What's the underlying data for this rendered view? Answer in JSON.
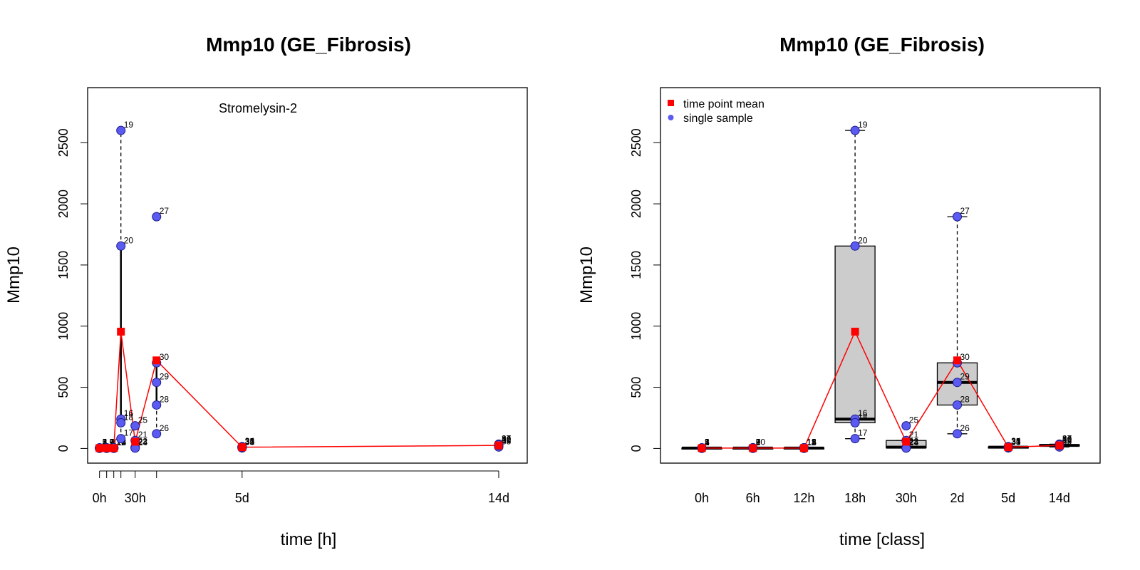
{
  "chart_data": [
    {
      "type": "scatter",
      "title": "Mmp10 (GE_Fibrosis)",
      "xlabel": "time [h]",
      "ylabel": "Mmp10",
      "annotation": "Stromelysin-2",
      "xlim": [
        -10,
        360
      ],
      "ylim": [
        -120,
        2950
      ],
      "x_ticks": [
        0,
        6,
        12,
        18,
        30,
        48,
        120,
        336
      ],
      "x_tick_labels": [
        "0h",
        "",
        "",
        "",
        "30h",
        "",
        "5d",
        "14d"
      ],
      "y_ticks": [
        0,
        500,
        1000,
        1500,
        2000,
        2500
      ],
      "samples": [
        {
          "id": "1",
          "x": 0,
          "y": 2
        },
        {
          "id": "2",
          "x": 0,
          "y": 4
        },
        {
          "id": "3",
          "x": 0,
          "y": 1
        },
        {
          "id": "4",
          "x": 0,
          "y": 3
        },
        {
          "id": "5",
          "x": 0,
          "y": 5
        },
        {
          "id": "6",
          "x": 6,
          "y": 3
        },
        {
          "id": "7",
          "x": 6,
          "y": 6
        },
        {
          "id": "8",
          "x": 6,
          "y": 2
        },
        {
          "id": "9",
          "x": 6,
          "y": 1
        },
        {
          "id": "10",
          "x": 6,
          "y": 4
        },
        {
          "id": "11",
          "x": 12,
          "y": 2
        },
        {
          "id": "12",
          "x": 12,
          "y": 5
        },
        {
          "id": "13",
          "x": 12,
          "y": 1
        },
        {
          "id": "14",
          "x": 12,
          "y": 3
        },
        {
          "id": "15",
          "x": 12,
          "y": 6
        },
        {
          "id": "16",
          "x": 18,
          "y": 240
        },
        {
          "id": "17",
          "x": 18,
          "y": 80
        },
        {
          "id": "18",
          "x": 18,
          "y": 210
        },
        {
          "id": "19",
          "x": 18,
          "y": 2600
        },
        {
          "id": "20",
          "x": 18,
          "y": 1655
        },
        {
          "id": "21",
          "x": 30,
          "y": 65
        },
        {
          "id": "22",
          "x": 30,
          "y": 10
        },
        {
          "id": "23",
          "x": 30,
          "y": 5
        },
        {
          "id": "24",
          "x": 30,
          "y": 3
        },
        {
          "id": "25",
          "x": 30,
          "y": 185
        },
        {
          "id": "26",
          "x": 48,
          "y": 120
        },
        {
          "id": "27",
          "x": 48,
          "y": 1895
        },
        {
          "id": "28",
          "x": 48,
          "y": 355
        },
        {
          "id": "29",
          "x": 48,
          "y": 540
        },
        {
          "id": "30",
          "x": 48,
          "y": 700
        },
        {
          "id": "31",
          "x": 120,
          "y": 8
        },
        {
          "id": "32",
          "x": 120,
          "y": 12
        },
        {
          "id": "33",
          "x": 120,
          "y": 4
        },
        {
          "id": "34",
          "x": 120,
          "y": 15
        },
        {
          "id": "35",
          "x": 120,
          "y": 10
        },
        {
          "id": "36",
          "x": 336,
          "y": 20
        },
        {
          "id": "37",
          "x": 336,
          "y": 35
        },
        {
          "id": "38",
          "x": 336,
          "y": 12
        },
        {
          "id": "39",
          "x": 336,
          "y": 25
        },
        {
          "id": "40",
          "x": 336,
          "y": 30
        }
      ],
      "means": [
        {
          "x": 0,
          "y": 3
        },
        {
          "x": 6,
          "y": 3
        },
        {
          "x": 12,
          "y": 3
        },
        {
          "x": 18,
          "y": 955
        },
        {
          "x": 30,
          "y": 55
        },
        {
          "x": 48,
          "y": 720
        },
        {
          "x": 120,
          "y": 10
        },
        {
          "x": 336,
          "y": 25
        }
      ],
      "colors": {
        "sample": "#5b5bf2",
        "sample_edge": "#1a1a8c",
        "mean": "#ff0000",
        "mean_line": "#ff0000"
      }
    },
    {
      "type": "box",
      "title": "Mmp10 (GE_Fibrosis)",
      "xlabel": "time [class]",
      "ylabel": "Mmp10",
      "ylim": [
        -120,
        2950
      ],
      "y_ticks": [
        0,
        500,
        1000,
        1500,
        2000,
        2500
      ],
      "categories": [
        "0h",
        "6h",
        "12h",
        "18h",
        "30h",
        "2d",
        "5d",
        "14d"
      ],
      "legend": [
        {
          "label": "time point mean",
          "marker": "square",
          "color": "#ff0000"
        },
        {
          "label": "single sample",
          "marker": "circle",
          "color": "#5b5bf2"
        }
      ],
      "legend_position": "top-left",
      "boxes": [
        {
          "category": "0h",
          "whisker_low": 1,
          "q1": 2,
          "median": 3,
          "q3": 4,
          "whisker_high": 5
        },
        {
          "category": "6h",
          "whisker_low": 1,
          "q1": 2,
          "median": 3,
          "q3": 4,
          "whisker_high": 6
        },
        {
          "category": "12h",
          "whisker_low": 1,
          "q1": 2,
          "median": 3,
          "q3": 5,
          "whisker_high": 6
        },
        {
          "category": "18h",
          "whisker_low": 80,
          "q1": 210,
          "median": 240,
          "q3": 1655,
          "whisker_high": 2600
        },
        {
          "category": "30h",
          "whisker_low": 3,
          "q1": 5,
          "median": 10,
          "q3": 65,
          "whisker_high": 65
        },
        {
          "category": "2d",
          "whisker_low": 120,
          "q1": 355,
          "median": 540,
          "q3": 700,
          "whisker_high": 1895
        },
        {
          "category": "5d",
          "whisker_low": 4,
          "q1": 8,
          "median": 10,
          "q3": 12,
          "whisker_high": 15
        },
        {
          "category": "14d",
          "whisker_low": 12,
          "q1": 20,
          "median": 25,
          "q3": 30,
          "whisker_high": 35
        }
      ],
      "samples": [
        {
          "id": "1",
          "cat": 0,
          "y": 2
        },
        {
          "id": "2",
          "cat": 0,
          "y": 4
        },
        {
          "id": "3",
          "cat": 0,
          "y": 1
        },
        {
          "id": "4",
          "cat": 0,
          "y": 3
        },
        {
          "id": "5",
          "cat": 0,
          "y": 5
        },
        {
          "id": "6",
          "cat": 1,
          "y": 3
        },
        {
          "id": "7",
          "cat": 1,
          "y": 6
        },
        {
          "id": "8",
          "cat": 1,
          "y": 2
        },
        {
          "id": "9",
          "cat": 1,
          "y": 1
        },
        {
          "id": "10",
          "cat": 1,
          "y": 4
        },
        {
          "id": "11",
          "cat": 2,
          "y": 2
        },
        {
          "id": "12",
          "cat": 2,
          "y": 5
        },
        {
          "id": "13",
          "cat": 2,
          "y": 1
        },
        {
          "id": "14",
          "cat": 2,
          "y": 3
        },
        {
          "id": "15",
          "cat": 2,
          "y": 6
        },
        {
          "id": "16",
          "cat": 3,
          "y": 240
        },
        {
          "id": "17",
          "cat": 3,
          "y": 80
        },
        {
          "id": "18",
          "cat": 3,
          "y": 210
        },
        {
          "id": "19",
          "cat": 3,
          "y": 2600
        },
        {
          "id": "20",
          "cat": 3,
          "y": 1655
        },
        {
          "id": "21",
          "cat": 4,
          "y": 65
        },
        {
          "id": "22",
          "cat": 4,
          "y": 10
        },
        {
          "id": "23",
          "cat": 4,
          "y": 5
        },
        {
          "id": "24",
          "cat": 4,
          "y": 3
        },
        {
          "id": "25",
          "cat": 4,
          "y": 185
        },
        {
          "id": "26",
          "cat": 5,
          "y": 120
        },
        {
          "id": "27",
          "cat": 5,
          "y": 1895
        },
        {
          "id": "28",
          "cat": 5,
          "y": 355
        },
        {
          "id": "29",
          "cat": 5,
          "y": 540
        },
        {
          "id": "30",
          "cat": 5,
          "y": 700
        },
        {
          "id": "31",
          "cat": 6,
          "y": 8
        },
        {
          "id": "32",
          "cat": 6,
          "y": 12
        },
        {
          "id": "33",
          "cat": 6,
          "y": 4
        },
        {
          "id": "34",
          "cat": 6,
          "y": 15
        },
        {
          "id": "35",
          "cat": 6,
          "y": 10
        },
        {
          "id": "36",
          "cat": 7,
          "y": 20
        },
        {
          "id": "37",
          "cat": 7,
          "y": 35
        },
        {
          "id": "38",
          "cat": 7,
          "y": 12
        },
        {
          "id": "39",
          "cat": 7,
          "y": 25
        },
        {
          "id": "40",
          "cat": 7,
          "y": 30
        }
      ],
      "means": [
        3,
        3,
        3,
        955,
        55,
        720,
        10,
        25
      ],
      "colors": {
        "box_fill": "#cccccc",
        "sample": "#5b5bf2",
        "sample_edge": "#1a1a8c",
        "mean": "#ff0000",
        "mean_line": "#ff0000"
      }
    }
  ]
}
